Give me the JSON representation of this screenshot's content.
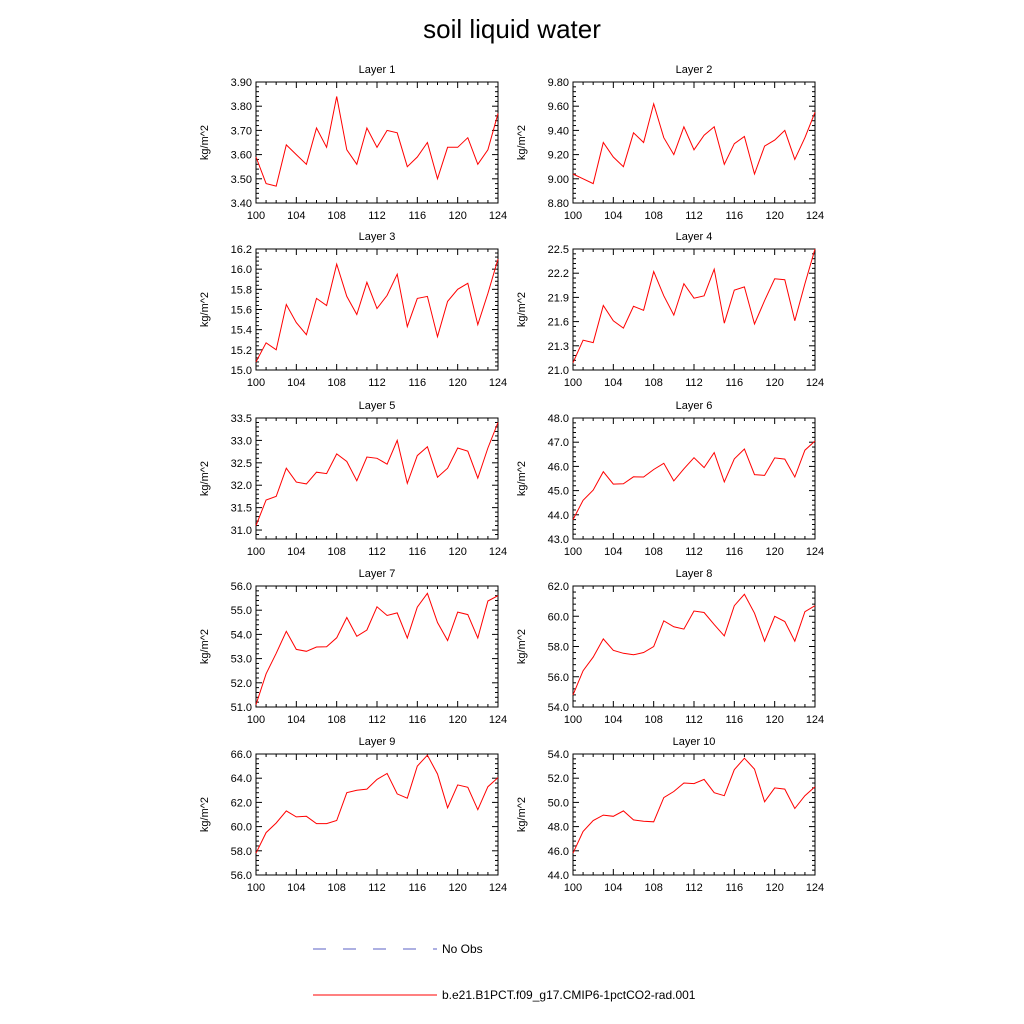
{
  "figure": {
    "title": "soil liquid water"
  },
  "legend": {
    "entries": [
      {
        "label": "No Obs",
        "color": "#5b62c4",
        "style": "dashed"
      },
      {
        "label": "b.e21.B1PCT.f09_g17.CMIP6-1pctCO2-rad.001",
        "color": "#ff0000",
        "style": "solid"
      }
    ]
  },
  "chart_data": [
    {
      "type": "line",
      "title": "Layer 1",
      "xlabel": "",
      "ylabel": "kg/m^2",
      "xlim": [
        100,
        124
      ],
      "ylim": [
        3.4,
        3.9
      ],
      "xticks": [
        "100",
        "104",
        "108",
        "112",
        "116",
        "120",
        "124"
      ],
      "yticks": [
        "3.40",
        "3.50",
        "3.60",
        "3.70",
        "3.80",
        "3.90"
      ],
      "series": [
        {
          "color": "#ff0000",
          "x": [
            100,
            101,
            102,
            103,
            104,
            105,
            106,
            107,
            108,
            109,
            110,
            111,
            112,
            113,
            114,
            115,
            116,
            117,
            118,
            119,
            120,
            121,
            122,
            123,
            124
          ],
          "y": [
            3.59,
            3.48,
            3.47,
            3.64,
            3.6,
            3.56,
            3.71,
            3.63,
            3.84,
            3.62,
            3.56,
            3.71,
            3.63,
            3.7,
            3.69,
            3.55,
            3.59,
            3.65,
            3.5,
            3.63,
            3.63,
            3.67,
            3.56,
            3.62,
            3.77
          ]
        }
      ]
    },
    {
      "type": "line",
      "title": "Layer 2",
      "xlabel": "",
      "ylabel": "kg/m^2",
      "xlim": [
        100,
        124
      ],
      "ylim": [
        8.8,
        9.8
      ],
      "xticks": [
        "100",
        "104",
        "108",
        "112",
        "116",
        "120",
        "124"
      ],
      "yticks": [
        "8.80",
        "9.00",
        "9.20",
        "9.40",
        "9.60",
        "9.80"
      ],
      "series": [
        {
          "color": "#ff0000",
          "x": [
            100,
            101,
            102,
            103,
            104,
            105,
            106,
            107,
            108,
            109,
            110,
            111,
            112,
            113,
            114,
            115,
            116,
            117,
            118,
            119,
            120,
            121,
            122,
            123,
            124
          ],
          "y": [
            9.04,
            9.0,
            8.96,
            9.3,
            9.18,
            9.1,
            9.38,
            9.3,
            9.62,
            9.34,
            9.2,
            9.43,
            9.24,
            9.36,
            9.43,
            9.12,
            9.29,
            9.35,
            9.04,
            9.27,
            9.32,
            9.4,
            9.16,
            9.34,
            9.55
          ]
        }
      ]
    },
    {
      "type": "line",
      "title": "Layer 3",
      "xlabel": "",
      "ylabel": "kg/m^2",
      "xlim": [
        100,
        124
      ],
      "ylim": [
        15.0,
        16.2
      ],
      "xticks": [
        "100",
        "104",
        "108",
        "112",
        "116",
        "120",
        "124"
      ],
      "yticks": [
        "15.0",
        "15.2",
        "15.4",
        "15.6",
        "15.8",
        "16.0",
        "16.2"
      ],
      "series": [
        {
          "color": "#ff0000",
          "x": [
            100,
            101,
            102,
            103,
            104,
            105,
            106,
            107,
            108,
            109,
            110,
            111,
            112,
            113,
            114,
            115,
            116,
            117,
            118,
            119,
            120,
            121,
            122,
            123,
            124
          ],
          "y": [
            15.08,
            15.27,
            15.2,
            15.65,
            15.47,
            15.35,
            15.71,
            15.64,
            16.05,
            15.73,
            15.55,
            15.87,
            15.61,
            15.74,
            15.95,
            15.43,
            15.71,
            15.73,
            15.33,
            15.68,
            15.8,
            15.86,
            15.45,
            15.76,
            16.1
          ]
        }
      ]
    },
    {
      "type": "line",
      "title": "Layer 4",
      "xlabel": "",
      "ylabel": "kg/m^2",
      "xlim": [
        100,
        124
      ],
      "ylim": [
        21.0,
        22.5
      ],
      "xticks": [
        "100",
        "104",
        "108",
        "112",
        "116",
        "120",
        "124"
      ],
      "yticks": [
        "21.0",
        "21.3",
        "21.6",
        "21.9",
        "22.2",
        "22.5"
      ],
      "series": [
        {
          "color": "#ff0000",
          "x": [
            100,
            101,
            102,
            103,
            104,
            105,
            106,
            107,
            108,
            109,
            110,
            111,
            112,
            113,
            114,
            115,
            116,
            117,
            118,
            119,
            120,
            121,
            122,
            123,
            124
          ],
          "y": [
            21.09,
            21.37,
            21.34,
            21.8,
            21.61,
            21.52,
            21.79,
            21.74,
            22.22,
            21.92,
            21.68,
            22.07,
            21.89,
            21.92,
            22.25,
            21.58,
            21.99,
            22.03,
            21.57,
            21.86,
            22.13,
            22.12,
            21.61,
            22.07,
            22.5
          ]
        }
      ]
    },
    {
      "type": "line",
      "title": "Layer 5",
      "xlabel": "",
      "ylabel": "kg/m^2",
      "xlim": [
        100,
        124
      ],
      "ylim": [
        30.8,
        33.5
      ],
      "xticks": [
        "100",
        "104",
        "108",
        "112",
        "116",
        "120",
        "124"
      ],
      "yticks": [
        "31.0",
        "31.5",
        "32.0",
        "32.5",
        "33.0",
        "33.5"
      ],
      "series": [
        {
          "color": "#ff0000",
          "x": [
            100,
            101,
            102,
            103,
            104,
            105,
            106,
            107,
            108,
            109,
            110,
            111,
            112,
            113,
            114,
            115,
            116,
            117,
            118,
            119,
            120,
            121,
            122,
            123,
            124
          ],
          "y": [
            31.1,
            31.67,
            31.75,
            32.38,
            32.07,
            32.03,
            32.29,
            32.26,
            32.7,
            32.53,
            32.1,
            32.63,
            32.6,
            32.47,
            33.0,
            32.04,
            32.66,
            32.86,
            32.18,
            32.38,
            32.83,
            32.76,
            32.16,
            32.83,
            33.4
          ]
        }
      ]
    },
    {
      "type": "line",
      "title": "Layer 6",
      "xlabel": "",
      "ylabel": "kg/m^2",
      "xlim": [
        100,
        124
      ],
      "ylim": [
        43.0,
        48.0
      ],
      "xticks": [
        "100",
        "104",
        "108",
        "112",
        "116",
        "120",
        "124"
      ],
      "yticks": [
        "43.0",
        "44.0",
        "45.0",
        "46.0",
        "47.0",
        "48.0"
      ],
      "series": [
        {
          "color": "#ff0000",
          "x": [
            100,
            101,
            102,
            103,
            104,
            105,
            106,
            107,
            108,
            109,
            110,
            111,
            112,
            113,
            114,
            115,
            116,
            117,
            118,
            119,
            120,
            121,
            122,
            123,
            124
          ],
          "y": [
            43.8,
            44.6,
            45.02,
            45.78,
            45.27,
            45.28,
            45.57,
            45.56,
            45.87,
            46.13,
            45.4,
            45.9,
            46.36,
            45.95,
            46.57,
            45.36,
            46.31,
            46.72,
            45.66,
            45.63,
            46.35,
            46.3,
            45.56,
            46.67,
            47.05
          ]
        }
      ]
    },
    {
      "type": "line",
      "title": "Layer 7",
      "xlabel": "",
      "ylabel": "kg/m^2",
      "xlim": [
        100,
        124
      ],
      "ylim": [
        51.0,
        56.0
      ],
      "xticks": [
        "100",
        "104",
        "108",
        "112",
        "116",
        "120",
        "124"
      ],
      "yticks": [
        "51.0",
        "52.0",
        "53.0",
        "54.0",
        "55.0",
        "56.0"
      ],
      "series": [
        {
          "color": "#ff0000",
          "x": [
            100,
            101,
            102,
            103,
            104,
            105,
            106,
            107,
            108,
            109,
            110,
            111,
            112,
            113,
            114,
            115,
            116,
            117,
            118,
            119,
            120,
            121,
            122,
            123,
            124
          ],
          "y": [
            51.1,
            52.37,
            53.22,
            54.13,
            53.38,
            53.3,
            53.48,
            53.49,
            53.86,
            54.7,
            53.92,
            54.18,
            55.14,
            54.78,
            54.89,
            53.85,
            55.13,
            55.7,
            54.49,
            53.75,
            54.92,
            54.82,
            53.85,
            55.38,
            55.6
          ]
        }
      ]
    },
    {
      "type": "line",
      "title": "Layer 8",
      "xlabel": "",
      "ylabel": "kg/m^2",
      "xlim": [
        100,
        124
      ],
      "ylim": [
        54.0,
        62.0
      ],
      "xticks": [
        "100",
        "104",
        "108",
        "112",
        "116",
        "120",
        "124"
      ],
      "yticks": [
        "54.0",
        "56.0",
        "58.0",
        "60.0",
        "62.0"
      ],
      "series": [
        {
          "color": "#ff0000",
          "x": [
            100,
            101,
            102,
            103,
            104,
            105,
            106,
            107,
            108,
            109,
            110,
            111,
            112,
            113,
            114,
            115,
            116,
            117,
            118,
            119,
            120,
            121,
            122,
            123,
            124
          ],
          "y": [
            54.8,
            56.4,
            57.3,
            58.5,
            57.75,
            57.55,
            57.45,
            57.6,
            58.0,
            59.7,
            59.3,
            59.15,
            60.35,
            60.25,
            59.45,
            58.7,
            60.7,
            61.45,
            60.2,
            58.35,
            60.0,
            59.65,
            58.35,
            60.3,
            60.7
          ]
        }
      ]
    },
    {
      "type": "line",
      "title": "Layer 9",
      "xlabel": "",
      "ylabel": "kg/m^2",
      "xlim": [
        100,
        124
      ],
      "ylim": [
        56.0,
        66.0
      ],
      "xticks": [
        "100",
        "104",
        "108",
        "112",
        "116",
        "120",
        "124"
      ],
      "yticks": [
        "56.0",
        "58.0",
        "60.0",
        "62.0",
        "64.0",
        "66.0"
      ],
      "series": [
        {
          "color": "#ff0000",
          "x": [
            100,
            101,
            102,
            103,
            104,
            105,
            106,
            107,
            108,
            109,
            110,
            111,
            112,
            113,
            114,
            115,
            116,
            117,
            118,
            119,
            120,
            121,
            122,
            123,
            124
          ],
          "y": [
            57.8,
            59.5,
            60.3,
            61.3,
            60.8,
            60.85,
            60.25,
            60.25,
            60.5,
            62.8,
            63.0,
            63.1,
            63.9,
            64.4,
            62.7,
            62.35,
            65.0,
            65.9,
            64.35,
            61.55,
            63.45,
            63.25,
            61.4,
            63.3,
            64.05
          ]
        }
      ]
    },
    {
      "type": "line",
      "title": "Layer 10",
      "xlabel": "",
      "ylabel": "kg/m^2",
      "xlim": [
        100,
        124
      ],
      "ylim": [
        44.0,
        54.0
      ],
      "xticks": [
        "100",
        "104",
        "108",
        "112",
        "116",
        "120",
        "124"
      ],
      "yticks": [
        "44.0",
        "46.0",
        "48.0",
        "50.0",
        "52.0",
        "54.0"
      ],
      "series": [
        {
          "color": "#ff0000",
          "x": [
            100,
            101,
            102,
            103,
            104,
            105,
            106,
            107,
            108,
            109,
            110,
            111,
            112,
            113,
            114,
            115,
            116,
            117,
            118,
            119,
            120,
            121,
            122,
            123,
            124
          ],
          "y": [
            45.8,
            47.6,
            48.5,
            48.95,
            48.85,
            49.3,
            48.55,
            48.45,
            48.4,
            50.4,
            50.9,
            51.6,
            51.55,
            51.9,
            50.8,
            50.55,
            52.7,
            53.65,
            52.75,
            50.05,
            51.2,
            51.1,
            49.5,
            50.55,
            51.3
          ]
        }
      ]
    }
  ]
}
